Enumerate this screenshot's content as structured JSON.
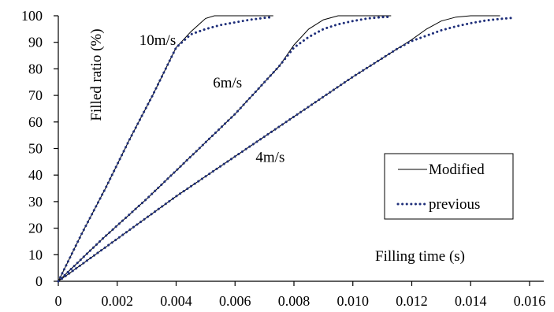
{
  "chart_data": {
    "type": "line",
    "title": "",
    "xlabel": "Filling time (s)",
    "ylabel": "Filled ratio (%)",
    "xlim": [
      0,
      0.016
    ],
    "ylim": [
      0,
      100
    ],
    "x_ticks": [
      "0",
      "0.002",
      "0.004",
      "0.006",
      "0.008",
      "0.010",
      "0.012",
      "0.014",
      "0.016"
    ],
    "y_ticks": [
      "0",
      "10",
      "20",
      "30",
      "40",
      "50",
      "60",
      "70",
      "80",
      "90",
      "100"
    ],
    "grid": false,
    "legend_position": "right",
    "series_styles": [
      {
        "name": "Modified",
        "color": "#000000",
        "dash": "solid"
      },
      {
        "name": "previous",
        "color": "#1f2f7a",
        "dash": "dotted"
      }
    ],
    "curve_labels": [
      {
        "text": "10m/s",
        "x": 0.00275,
        "y": 89
      },
      {
        "text": "6m/s",
        "x": 0.00525,
        "y": 73
      },
      {
        "text": "4m/s",
        "x": 0.0067,
        "y": 45
      }
    ],
    "series": [
      {
        "name": "Modified",
        "velocity": "10m/s",
        "x": [
          0,
          0.0008,
          0.0016,
          0.0024,
          0.0032,
          0.004,
          0.0045,
          0.005,
          0.0053,
          0.0056,
          0.006,
          0.0065,
          0.007,
          0.0073
        ],
        "y": [
          0,
          18,
          35,
          53,
          70,
          88,
          94,
          99,
          100,
          100,
          100,
          100,
          100,
          100
        ]
      },
      {
        "name": "previous",
        "velocity": "10m/s",
        "x": [
          0,
          0.0008,
          0.0016,
          0.0024,
          0.0032,
          0.004,
          0.0045,
          0.005,
          0.0055,
          0.006,
          0.0065,
          0.007,
          0.0073
        ],
        "y": [
          0,
          18,
          35,
          53,
          70,
          88,
          93,
          95,
          96.5,
          97.5,
          98.5,
          99.2,
          99.5
        ]
      },
      {
        "name": "Modified",
        "velocity": "6m/s",
        "x": [
          0,
          0.0015,
          0.003,
          0.0045,
          0.006,
          0.007,
          0.0075,
          0.008,
          0.0085,
          0.009,
          0.0095,
          0.01,
          0.0105,
          0.011,
          0.0113
        ],
        "y": [
          0,
          16,
          31,
          47,
          63,
          75,
          81,
          89,
          95,
          98.5,
          100,
          100,
          100,
          100,
          100
        ]
      },
      {
        "name": "previous",
        "velocity": "6m/s",
        "x": [
          0,
          0.0015,
          0.003,
          0.0045,
          0.006,
          0.007,
          0.0075,
          0.008,
          0.0085,
          0.009,
          0.0095,
          0.01,
          0.0105,
          0.011,
          0.0113
        ],
        "y": [
          0,
          16,
          31,
          47,
          63,
          75,
          81,
          88,
          92,
          95,
          96.8,
          98,
          99,
          99.5,
          99.6
        ]
      },
      {
        "name": "Modified",
        "velocity": "4m/s",
        "x": [
          0,
          0.002,
          0.004,
          0.006,
          0.008,
          0.01,
          0.011,
          0.0115,
          0.012,
          0.0125,
          0.013,
          0.0135,
          0.014,
          0.0145,
          0.015
        ],
        "y": [
          0,
          16,
          32,
          47,
          62,
          77,
          84,
          87.5,
          91,
          95,
          98,
          99.5,
          100,
          100,
          100
        ]
      },
      {
        "name": "previous",
        "velocity": "4m/s",
        "x": [
          0,
          0.002,
          0.004,
          0.006,
          0.008,
          0.01,
          0.011,
          0.0115,
          0.012,
          0.0125,
          0.013,
          0.0135,
          0.014,
          0.0145,
          0.015,
          0.0155
        ],
        "y": [
          0,
          16,
          32,
          47,
          62,
          77,
          84,
          87.5,
          90.5,
          92.5,
          94.5,
          96,
          97.2,
          98.2,
          98.8,
          99.3
        ]
      }
    ]
  }
}
